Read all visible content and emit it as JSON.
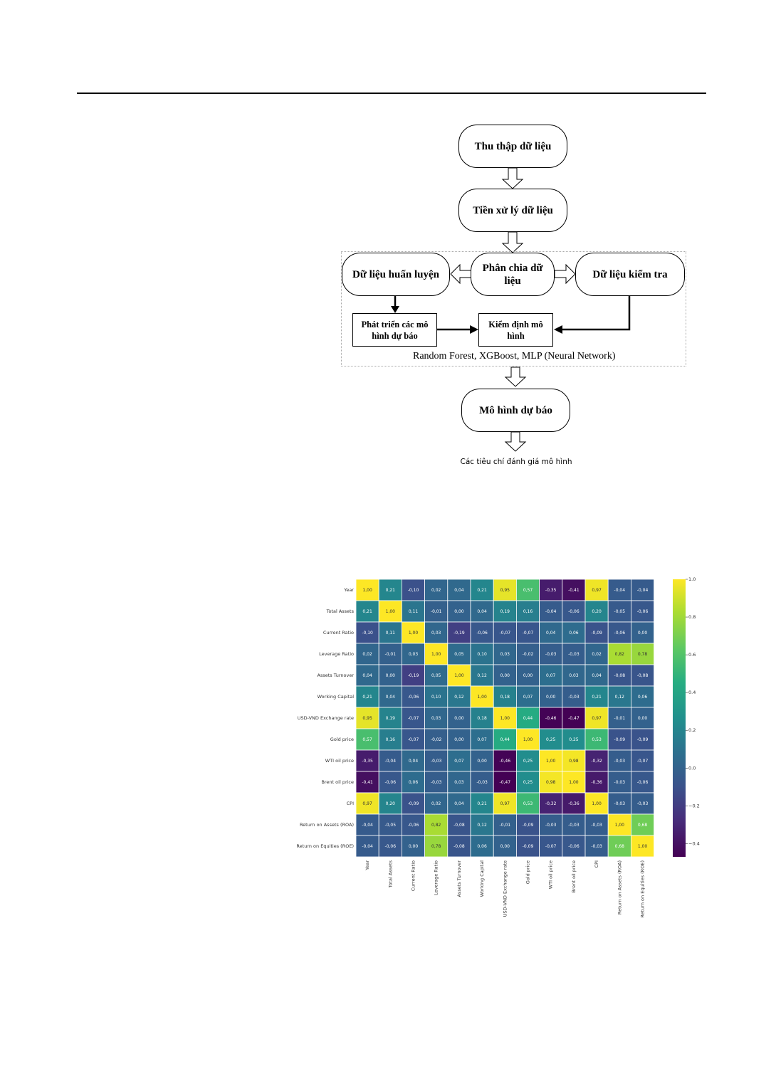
{
  "flowchart": {
    "collect": "Thu thập dữ liệu",
    "preprocess": "Tiền xử lý dữ liệu",
    "split": "Phân chia dữ liệu",
    "train": "Dữ liệu huấn luyện",
    "test": "Dữ liệu kiểm tra",
    "develop": "Phát triển các mô hình dự báo",
    "validate": "Kiểm định mô hình",
    "models": "Random Forest, XGBoost, MLP (Neural Network)",
    "forecast": "Mô hình dự báo",
    "criteria": "Các tiêu chí đánh giá mô hình"
  },
  "chart_data": {
    "type": "heatmap",
    "colormap": "viridis",
    "decimal_separator": ",",
    "labels": [
      "Year",
      "Total Assets",
      "Current Ratio",
      "Leverage Ratio",
      "Assets Turnover",
      "Working Capital",
      "USD-VND Exchange rate",
      "Gold price",
      "WTI oil price",
      "Brent oil price",
      "CPI",
      "Return on Assets (ROA)",
      "Return on Equities (ROE)"
    ],
    "values": [
      [
        1.0,
        0.21,
        -0.1,
        0.02,
        0.04,
        0.21,
        0.95,
        0.57,
        -0.35,
        -0.41,
        0.97,
        -0.04,
        -0.04
      ],
      [
        0.21,
        1.0,
        0.11,
        -0.01,
        0.0,
        0.04,
        0.19,
        0.16,
        -0.04,
        -0.06,
        0.2,
        -0.05,
        -0.06
      ],
      [
        -0.1,
        0.11,
        1.0,
        0.03,
        -0.19,
        -0.06,
        -0.07,
        -0.07,
        0.04,
        0.06,
        -0.09,
        -0.06,
        0.0
      ],
      [
        0.02,
        -0.01,
        0.03,
        1.0,
        0.05,
        0.1,
        0.03,
        -0.02,
        -0.03,
        -0.03,
        0.02,
        0.82,
        0.78
      ],
      [
        0.04,
        0.0,
        -0.19,
        0.05,
        1.0,
        0.12,
        -0.0,
        -0.0,
        0.07,
        0.03,
        0.04,
        -0.08,
        -0.08
      ],
      [
        0.21,
        0.04,
        -0.06,
        0.1,
        0.12,
        1.0,
        0.18,
        0.07,
        -0.0,
        -0.03,
        0.21,
        0.12,
        0.06
      ],
      [
        0.95,
        0.19,
        -0.07,
        0.03,
        -0.0,
        0.18,
        1.0,
        0.44,
        -0.46,
        -0.47,
        0.97,
        -0.01,
        -0.0
      ],
      [
        0.57,
        0.16,
        -0.07,
        -0.02,
        -0.0,
        0.07,
        0.44,
        1.0,
        0.25,
        0.25,
        0.53,
        -0.09,
        -0.09
      ],
      [
        -0.35,
        -0.04,
        0.04,
        -0.03,
        0.07,
        -0.0,
        -0.46,
        0.25,
        1.0,
        0.98,
        -0.32,
        -0.03,
        -0.07
      ],
      [
        -0.41,
        -0.06,
        0.06,
        -0.03,
        0.03,
        -0.03,
        -0.47,
        0.25,
        0.98,
        1.0,
        -0.36,
        -0.03,
        -0.06
      ],
      [
        0.97,
        0.2,
        -0.09,
        0.02,
        0.04,
        0.21,
        0.97,
        0.53,
        -0.32,
        -0.36,
        1.0,
        -0.03,
        -0.03
      ],
      [
        -0.04,
        -0.05,
        -0.06,
        0.82,
        -0.08,
        0.12,
        -0.01,
        -0.09,
        -0.03,
        -0.03,
        -0.03,
        1.0,
        0.68
      ],
      [
        -0.04,
        -0.06,
        0.0,
        0.78,
        -0.08,
        0.06,
        -0.0,
        -0.09,
        -0.07,
        -0.06,
        -0.03,
        0.68,
        1.0
      ]
    ],
    "colorbar": {
      "range": [
        -0.47,
        1.0
      ],
      "ticks": [
        "1.0",
        "0.8",
        "0.6",
        "0.4",
        "0.2",
        "0.0",
        "−0.2",
        "−0.4"
      ]
    }
  }
}
